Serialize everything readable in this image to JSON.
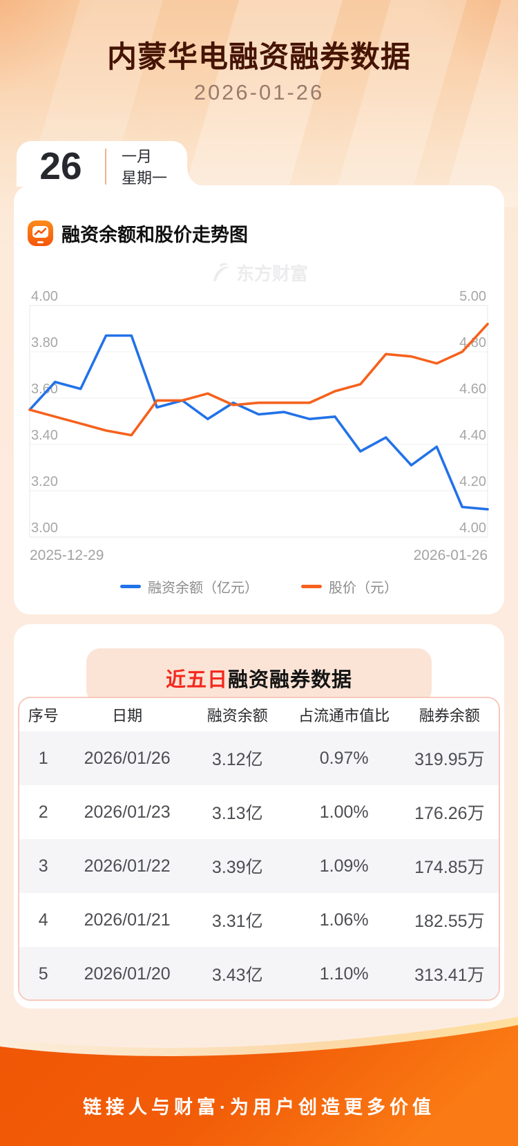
{
  "header": {
    "title": "内蒙华电融资融券数据",
    "date": "2026-01-26"
  },
  "date_card": {
    "day": "26",
    "month": "一月",
    "weekday": "星期一"
  },
  "chart_section": {
    "title": "融资余额和股价走势图",
    "watermark": "东方财富"
  },
  "chart_data": {
    "type": "line",
    "title": "融资余额和股价走势图",
    "x_labels_shown": [
      "2025-12-29",
      "2026-01-26"
    ],
    "num_points": 19,
    "grid": true,
    "legend_position": "bottom",
    "left_axis": {
      "min": 3.0,
      "max": 4.0,
      "ticks": [
        "4.00",
        "3.80",
        "3.60",
        "3.40",
        "3.20",
        "3.00"
      ]
    },
    "right_axis": {
      "min": 4.0,
      "max": 5.0,
      "ticks": [
        "5.00",
        "4.80",
        "4.60",
        "4.40",
        "4.20",
        "4.00"
      ]
    },
    "series": [
      {
        "name": "融资余额（亿元）",
        "axis": "left",
        "color": "#2272e8",
        "values": [
          3.55,
          3.67,
          3.64,
          3.87,
          3.87,
          3.56,
          3.59,
          3.51,
          3.58,
          3.53,
          3.54,
          3.51,
          3.52,
          3.37,
          3.43,
          3.31,
          3.39,
          3.13,
          3.12
        ]
      },
      {
        "name": "股价（元）",
        "axis": "right",
        "color": "#f5611d",
        "values": [
          4.55,
          4.52,
          4.49,
          4.46,
          4.44,
          4.59,
          4.59,
          4.62,
          4.57,
          4.58,
          4.58,
          4.58,
          4.63,
          4.66,
          4.79,
          4.78,
          4.75,
          4.8,
          4.92
        ]
      }
    ]
  },
  "table_section": {
    "title_highlight": "近五日",
    "title_rest": "融资融券数据",
    "watermark": "东方财富",
    "columns": [
      "序号",
      "日期",
      "融资余额",
      "占流通市值比",
      "融券余额"
    ],
    "rows": [
      [
        "1",
        "2026/01/26",
        "3.12亿",
        "0.97%",
        "319.95万"
      ],
      [
        "2",
        "2026/01/23",
        "3.13亿",
        "1.00%",
        "176.26万"
      ],
      [
        "3",
        "2026/01/22",
        "3.39亿",
        "1.09%",
        "174.85万"
      ],
      [
        "4",
        "2026/01/21",
        "3.31亿",
        "1.06%",
        "182.55万"
      ],
      [
        "5",
        "2026/01/20",
        "3.43亿",
        "1.10%",
        "313.41万"
      ]
    ]
  },
  "footer": {
    "slogan": "链接人与财富·为用户创造更多价值"
  },
  "colors": {
    "line_blue": "#2272e8",
    "line_orange": "#f5611d",
    "title_brown": "#451404",
    "highlight_red": "#f5281e",
    "footer_orange": "#f25a0a",
    "pill_bg": "#fbe4d6"
  }
}
